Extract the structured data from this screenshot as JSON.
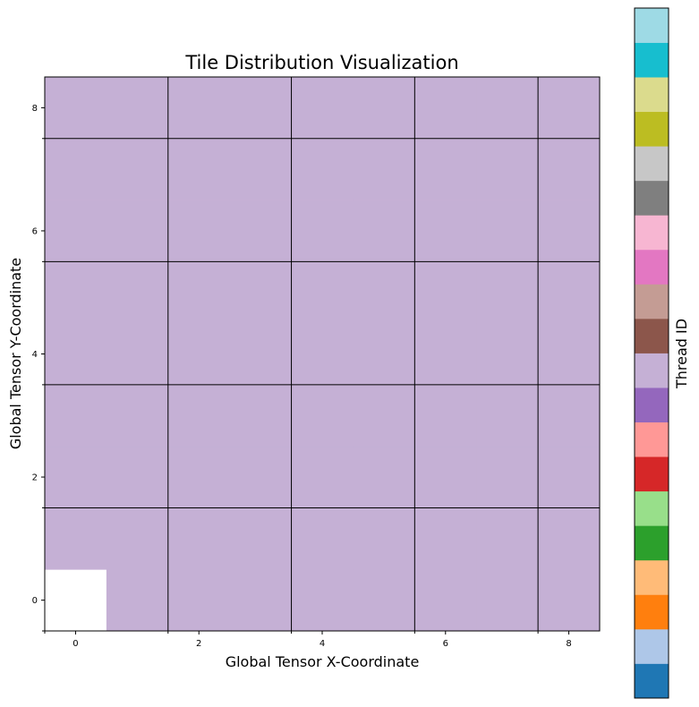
{
  "chart_data": {
    "type": "heatmap",
    "title": "Tile Distribution Visualization",
    "xlabel": "Global Tensor X-Coordinate",
    "ylabel": "Global Tensor Y-Coordinate",
    "xlim": [
      -0.5,
      8.5
    ],
    "ylim": [
      -0.5,
      8.5
    ],
    "x_ticks": [
      0,
      2,
      4,
      6,
      8
    ],
    "y_ticks": [
      0,
      2,
      4,
      6,
      8
    ],
    "x_tick_labels": [
      "0",
      "2",
      "4",
      "6",
      "8"
    ],
    "y_tick_labels": [
      "0",
      "2",
      "4",
      "6",
      "8"
    ],
    "tile_boundaries_x": [
      1.5,
      3.5,
      5.5,
      7.5
    ],
    "tile_boundaries_y": [
      1.5,
      3.5,
      5.5,
      7.5
    ],
    "grid_size": [
      9,
      9
    ],
    "fill_thread_id": 9,
    "empty_cells": [
      [
        0,
        0
      ]
    ],
    "empty_color": "#ffffff",
    "colorbar": {
      "label": "Thread ID",
      "count": 20,
      "colors": [
        "#1f77b4",
        "#aec7e8",
        "#ff7f0e",
        "#ffbb78",
        "#2ca02c",
        "#98df8a",
        "#d62728",
        "#ff9896",
        "#9467bd",
        "#c5b0d5",
        "#8c564b",
        "#c49c94",
        "#e377c2",
        "#f7b6d2",
        "#7f7f7f",
        "#c7c7c7",
        "#bcbd22",
        "#dbdb8d",
        "#17becf",
        "#9edae5"
      ]
    }
  }
}
